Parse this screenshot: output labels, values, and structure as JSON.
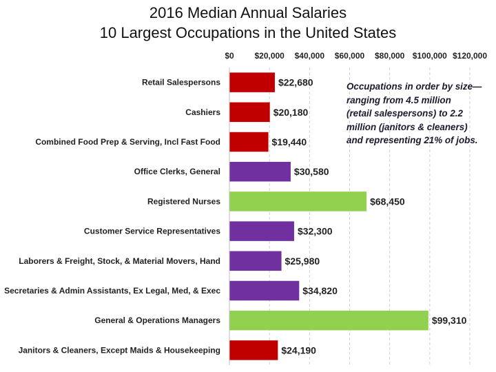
{
  "chart_data": {
    "type": "bar",
    "orientation": "horizontal",
    "title": "2016 Median Annual Salaries",
    "subtitle": "10 Largest Occupations in the United States",
    "categories": [
      "Retail Salespersons",
      "Cashiers",
      "Combined Food Prep & Serving, Incl Fast Food",
      "Office Clerks, General",
      "Registered Nurses",
      "Customer Service Representatives",
      "Laborers & Freight, Stock, & Material Movers, Hand",
      "Secretaries & Admin Assistants, Ex Legal, Med, & Exec",
      "General & Operations Managers",
      "Janitors & Cleaners, Except Maids & Housekeeping"
    ],
    "values": [
      22680,
      20180,
      19440,
      30580,
      68450,
      32300,
      25980,
      34820,
      99310,
      24190
    ],
    "value_labels": [
      "$22,680",
      "$20,180",
      "$19,440",
      "$30,580",
      "$68,450",
      "$32,300",
      "$25,980",
      "$34,820",
      "$99,310",
      "$24,190"
    ],
    "bar_colors": [
      "#c00000",
      "#c00000",
      "#c00000",
      "#7030a0",
      "#92d050",
      "#7030a0",
      "#7030a0",
      "#7030a0",
      "#92d050",
      "#c00000"
    ],
    "x_ticks": [
      0,
      20000,
      40000,
      60000,
      80000,
      100000,
      120000
    ],
    "x_tick_labels": [
      "$0",
      "$20,000",
      "$40,000",
      "$60,000",
      "$80,000",
      "$100,000",
      "$120,000"
    ],
    "xlim": [
      0,
      120000
    ],
    "xaxis_position": "top",
    "grid": "vertical dashed",
    "legend": "none",
    "annotation": [
      "Occupations in order by size—",
      "ranging from 4.5 million",
      "(retail salespersons) to 2.2",
      "million (janitors & cleaners)",
      "and representing 21% of jobs."
    ]
  }
}
